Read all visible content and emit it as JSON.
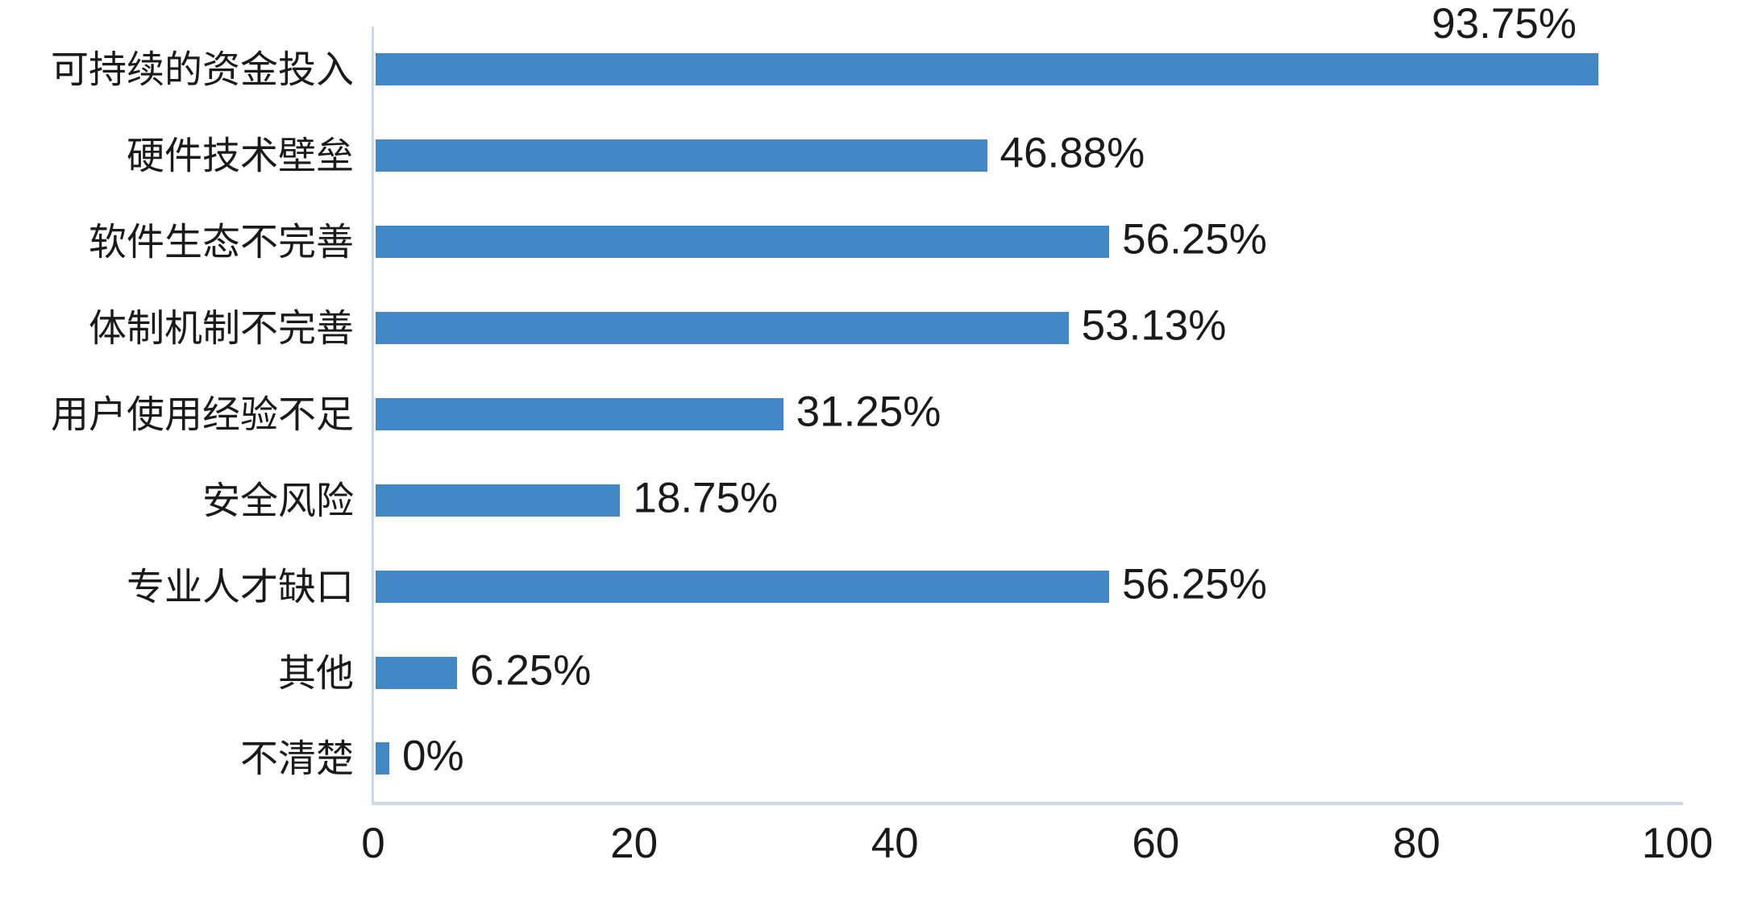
{
  "chart_data": {
    "type": "bar",
    "orientation": "horizontal",
    "title": "",
    "xlabel": "",
    "ylabel": "",
    "categories": [
      "可持续的资金投入",
      "硬件技术壁垒",
      "软件生态不完善",
      "体制机制不完善",
      "用户使用经验不足",
      "安全风险",
      "专业人才缺口",
      "其他",
      "不清楚"
    ],
    "values": [
      93.75,
      46.88,
      56.25,
      53.13,
      31.25,
      18.75,
      56.25,
      6.25,
      0
    ],
    "value_labels": [
      "93.75%",
      "46.88%",
      "56.25%",
      "53.13%",
      "31.25%",
      "18.75%",
      "56.25%",
      "6.25%",
      "0%"
    ],
    "x_ticks": [
      0,
      20,
      40,
      60,
      80,
      100
    ],
    "xlim": [
      0,
      100
    ],
    "grid": false,
    "legend": false,
    "bar_color": "#4288C6",
    "axis_line_color": "#CDD7EB",
    "text_color": "#1A1A1A",
    "background_color": "#FFFFFF"
  }
}
